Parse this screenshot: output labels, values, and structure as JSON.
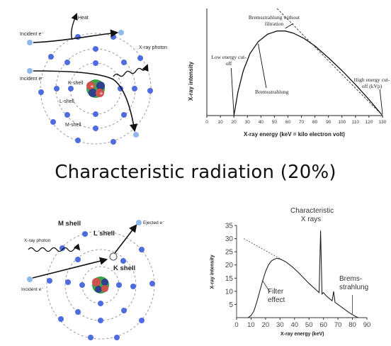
{
  "title": "Characteristic radiation (20%)",
  "top_atom": {
    "labels": {
      "incident1": "Incident e⁻",
      "incident2": "Incident e⁻",
      "heat": "Heat",
      "xray_photon": "X-ray photon",
      "k_shell": "K-shell",
      "l_shell": "L-shell",
      "m_shell": "M-shell"
    }
  },
  "bottom_atom": {
    "labels": {
      "m_shell": "M shell",
      "l_shell": "L shell",
      "k_shell": "K shell",
      "xray_photon": "X-ray photon",
      "incident": "Incident e⁻",
      "ejected": "Ejected e⁻"
    }
  },
  "colors": {
    "electron": "#4f6be0",
    "electron_light": "#8fb8ec",
    "orbit": "#999999",
    "nucleus_green": "#3fa34d",
    "nucleus_red": "#d0504b",
    "nucleus_blue": "#2f3f8a"
  },
  "chart_data": [
    {
      "type": "line",
      "title": "",
      "xlabel": "X-ray energy (keV = kilo electron volt)",
      "ylabel": "X-ray intensity",
      "xlim": [
        0,
        130
      ],
      "xticks": [
        0,
        10,
        20,
        30,
        40,
        50,
        60,
        70,
        80,
        90,
        100,
        110,
        120,
        130
      ],
      "y_ticks_shown": false,
      "series": [
        {
          "name": "",
          "x": [
            20,
            23,
            27,
            32,
            38,
            45,
            52,
            58,
            64,
            72,
            80,
            90,
            100,
            110,
            120,
            130
          ],
          "y": [
            0,
            0.22,
            0.42,
            0.58,
            0.69,
            0.76,
            0.79,
            0.79,
            0.77,
            0.72,
            0.65,
            0.54,
            0.42,
            0.29,
            0.15,
            0
          ]
        }
      ],
      "reference_line": {
        "label": "Bremsstrahlung without filtration",
        "x": [
          52,
          130
        ],
        "y": [
          1.0,
          0
        ]
      },
      "annotations": [
        {
          "text": "Bremsstrahlung without filtration",
          "at_x": 64
        },
        {
          "text": "Low energy cut-off",
          "at_x": 20
        },
        {
          "text": "Bremsstrahlung",
          "at_x": 46
        },
        {
          "text": "High energy cut-off (kVp)",
          "at_x": 130
        }
      ]
    },
    {
      "type": "line",
      "title": "",
      "xlabel": "X-ray energy (keV)",
      "ylabel": "X-ray intensity",
      "xlim": [
        0,
        90
      ],
      "ylim": [
        0,
        35
      ],
      "xticks": [
        0,
        10,
        20,
        30,
        40,
        50,
        60,
        70,
        80,
        90
      ],
      "yticks": [
        5,
        10,
        15,
        20,
        25,
        30,
        35
      ],
      "series": [
        {
          "name": "",
          "x": [
            8,
            10,
            12,
            14,
            16,
            18,
            20,
            22,
            24,
            26,
            28,
            30,
            34,
            38,
            42,
            46,
            50,
            54,
            57,
            58,
            59,
            60,
            62,
            66,
            67,
            68,
            70,
            74,
            78,
            82,
            84
          ],
          "y": [
            0,
            0.8,
            2.5,
            6,
            10,
            14,
            17.5,
            20,
            21.5,
            22.2,
            22.5,
            22.3,
            21.2,
            19.5,
            17.5,
            15.3,
            13,
            11,
            9.5,
            33,
            9,
            9.5,
            8.2,
            6.4,
            10,
            5.8,
            5,
            3.4,
            1.8,
            0.5,
            0
          ]
        }
      ],
      "reference_line": {
        "x": [
          5,
          30
        ],
        "y": [
          30,
          22.4
        ]
      },
      "annotations": [
        {
          "text": "Characteristic X rays",
          "at_x": 58
        },
        {
          "text": "Brems-strahlung",
          "at_x": 80
        },
        {
          "text": "Filter effect",
          "at_x": 24
        }
      ]
    }
  ]
}
